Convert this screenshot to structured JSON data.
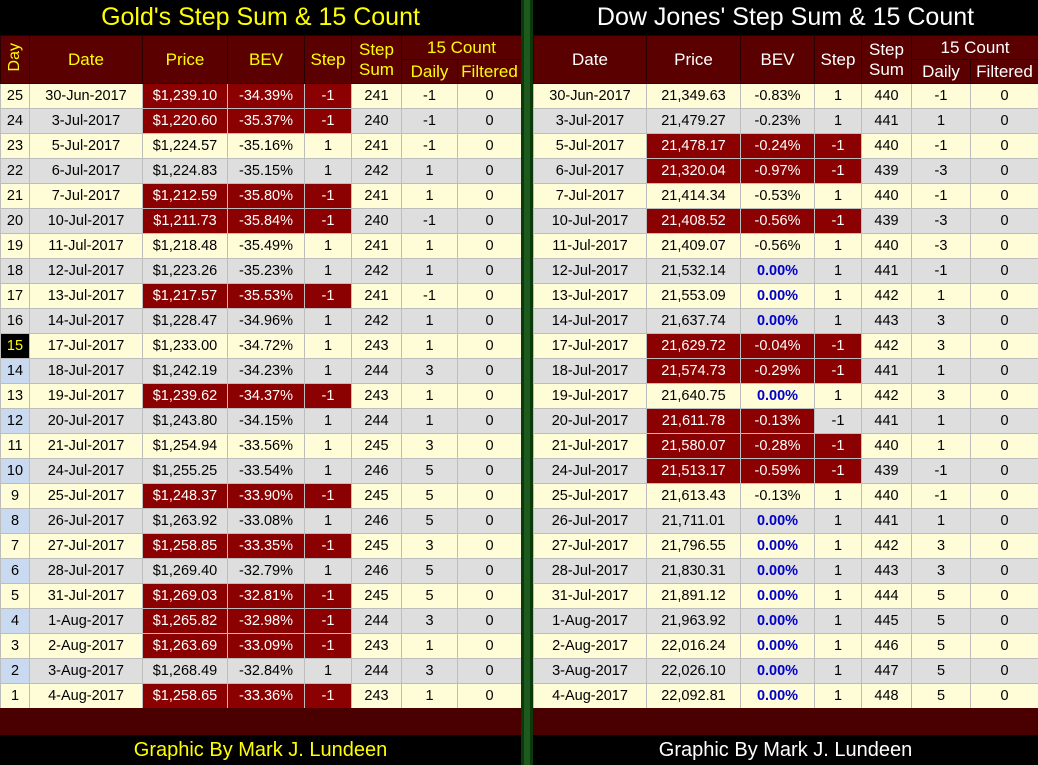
{
  "gold": {
    "title": "Gold's Step Sum & 15 Count",
    "headers": {
      "day": "Day",
      "date": "Date",
      "price": "Price",
      "bev": "BEV",
      "step": "Step",
      "stepsum": "Step Sum",
      "count15": "15 Count",
      "daily": "Daily",
      "filtered": "Filtered"
    },
    "rows": [
      [
        "25",
        "30-Jun-2017",
        "$1,239.10",
        "-34.39%",
        "-1",
        "241",
        "-1",
        "0"
      ],
      [
        "24",
        "3-Jul-2017",
        "$1,220.60",
        "-35.37%",
        "-1",
        "240",
        "-1",
        "0"
      ],
      [
        "23",
        "5-Jul-2017",
        "$1,224.57",
        "-35.16%",
        "1",
        "241",
        "-1",
        "0"
      ],
      [
        "22",
        "6-Jul-2017",
        "$1,224.83",
        "-35.15%",
        "1",
        "242",
        "1",
        "0"
      ],
      [
        "21",
        "7-Jul-2017",
        "$1,212.59",
        "-35.80%",
        "-1",
        "241",
        "1",
        "0"
      ],
      [
        "20",
        "10-Jul-2017",
        "$1,211.73",
        "-35.84%",
        "-1",
        "240",
        "-1",
        "0"
      ],
      [
        "19",
        "11-Jul-2017",
        "$1,218.48",
        "-35.49%",
        "1",
        "241",
        "1",
        "0"
      ],
      [
        "18",
        "12-Jul-2017",
        "$1,223.26",
        "-35.23%",
        "1",
        "242",
        "1",
        "0"
      ],
      [
        "17",
        "13-Jul-2017",
        "$1,217.57",
        "-35.53%",
        "-1",
        "241",
        "-1",
        "0"
      ],
      [
        "16",
        "14-Jul-2017",
        "$1,228.47",
        "-34.96%",
        "1",
        "242",
        "1",
        "0"
      ],
      [
        "15",
        "17-Jul-2017",
        "$1,233.00",
        "-34.72%",
        "1",
        "243",
        "1",
        "0"
      ],
      [
        "14",
        "18-Jul-2017",
        "$1,242.19",
        "-34.23%",
        "1",
        "244",
        "3",
        "0"
      ],
      [
        "13",
        "19-Jul-2017",
        "$1,239.62",
        "-34.37%",
        "-1",
        "243",
        "1",
        "0"
      ],
      [
        "12",
        "20-Jul-2017",
        "$1,243.80",
        "-34.15%",
        "1",
        "244",
        "1",
        "0"
      ],
      [
        "11",
        "21-Jul-2017",
        "$1,254.94",
        "-33.56%",
        "1",
        "245",
        "3",
        "0"
      ],
      [
        "10",
        "24-Jul-2017",
        "$1,255.25",
        "-33.54%",
        "1",
        "246",
        "5",
        "0"
      ],
      [
        "9",
        "25-Jul-2017",
        "$1,248.37",
        "-33.90%",
        "-1",
        "245",
        "5",
        "0"
      ],
      [
        "8",
        "26-Jul-2017",
        "$1,263.92",
        "-33.08%",
        "1",
        "246",
        "5",
        "0"
      ],
      [
        "7",
        "27-Jul-2017",
        "$1,258.85",
        "-33.35%",
        "-1",
        "245",
        "3",
        "0"
      ],
      [
        "6",
        "28-Jul-2017",
        "$1,269.40",
        "-32.79%",
        "1",
        "246",
        "5",
        "0"
      ],
      [
        "5",
        "31-Jul-2017",
        "$1,269.03",
        "-32.81%",
        "-1",
        "245",
        "5",
        "0"
      ],
      [
        "4",
        "1-Aug-2017",
        "$1,265.82",
        "-32.98%",
        "-1",
        "244",
        "3",
        "0"
      ],
      [
        "3",
        "2-Aug-2017",
        "$1,263.69",
        "-33.09%",
        "-1",
        "243",
        "1",
        "0"
      ],
      [
        "2",
        "3-Aug-2017",
        "$1,268.49",
        "-32.84%",
        "1",
        "244",
        "3",
        "0"
      ],
      [
        "1",
        "4-Aug-2017",
        "$1,258.65",
        "-33.36%",
        "-1",
        "243",
        "1",
        "0"
      ]
    ],
    "credit": "Graphic By Mark J. Lundeen"
  },
  "dow": {
    "title": "Dow Jones' Step Sum & 15 Count",
    "headers": {
      "date": "Date",
      "price": "Price",
      "bev": "BEV",
      "step": "Step",
      "stepsum": "Step Sum",
      "count15": "15 Count",
      "daily": "Daily",
      "filtered": "Filtered"
    },
    "rows": [
      [
        "30-Jun-2017",
        "21,349.63",
        "-0.83%",
        "1",
        "440",
        "-1",
        "0"
      ],
      [
        "3-Jul-2017",
        "21,479.27",
        "-0.23%",
        "1",
        "441",
        "1",
        "0"
      ],
      [
        "5-Jul-2017",
        "21,478.17",
        "-0.24%",
        "-1",
        "440",
        "-1",
        "0"
      ],
      [
        "6-Jul-2017",
        "21,320.04",
        "-0.97%",
        "-1",
        "439",
        "-3",
        "0"
      ],
      [
        "7-Jul-2017",
        "21,414.34",
        "-0.53%",
        "1",
        "440",
        "-1",
        "0"
      ],
      [
        "10-Jul-2017",
        "21,408.52",
        "-0.56%",
        "-1",
        "439",
        "-3",
        "0"
      ],
      [
        "11-Jul-2017",
        "21,409.07",
        "-0.56%",
        "1",
        "440",
        "-3",
        "0"
      ],
      [
        "12-Jul-2017",
        "21,532.14",
        "0.00%",
        "1",
        "441",
        "-1",
        "0"
      ],
      [
        "13-Jul-2017",
        "21,553.09",
        "0.00%",
        "1",
        "442",
        "1",
        "0"
      ],
      [
        "14-Jul-2017",
        "21,637.74",
        "0.00%",
        "1",
        "443",
        "3",
        "0"
      ],
      [
        "17-Jul-2017",
        "21,629.72",
        "-0.04%",
        "-1",
        "442",
        "3",
        "0"
      ],
      [
        "18-Jul-2017",
        "21,574.73",
        "-0.29%",
        "-1",
        "441",
        "1",
        "0"
      ],
      [
        "19-Jul-2017",
        "21,640.75",
        "0.00%",
        "1",
        "442",
        "3",
        "0"
      ],
      [
        "20-Jul-2017",
        "21,611.78",
        "-0.13%",
        "-1",
        "441",
        "1",
        "0"
      ],
      [
        "21-Jul-2017",
        "21,580.07",
        "-0.28%",
        "-1",
        "440",
        "1",
        "0"
      ],
      [
        "24-Jul-2017",
        "21,513.17",
        "-0.59%",
        "-1",
        "439",
        "-1",
        "0"
      ],
      [
        "25-Jul-2017",
        "21,613.43",
        "-0.13%",
        "1",
        "440",
        "-1",
        "0"
      ],
      [
        "26-Jul-2017",
        "21,711.01",
        "0.00%",
        "1",
        "441",
        "1",
        "0"
      ],
      [
        "27-Jul-2017",
        "21,796.55",
        "0.00%",
        "1",
        "442",
        "3",
        "0"
      ],
      [
        "28-Jul-2017",
        "21,830.31",
        "0.00%",
        "1",
        "443",
        "3",
        "0"
      ],
      [
        "31-Jul-2017",
        "21,891.12",
        "0.00%",
        "1",
        "444",
        "5",
        "0"
      ],
      [
        "1-Aug-2017",
        "21,963.92",
        "0.00%",
        "1",
        "445",
        "5",
        "0"
      ],
      [
        "2-Aug-2017",
        "22,016.24",
        "0.00%",
        "1",
        "446",
        "5",
        "0"
      ],
      [
        "3-Aug-2017",
        "22,026.10",
        "0.00%",
        "1",
        "447",
        "5",
        "0"
      ],
      [
        "4-Aug-2017",
        "22,092.81",
        "0.00%",
        "1",
        "448",
        "5",
        "0"
      ]
    ],
    "credit": "Graphic By Mark J. Lundeen"
  }
}
